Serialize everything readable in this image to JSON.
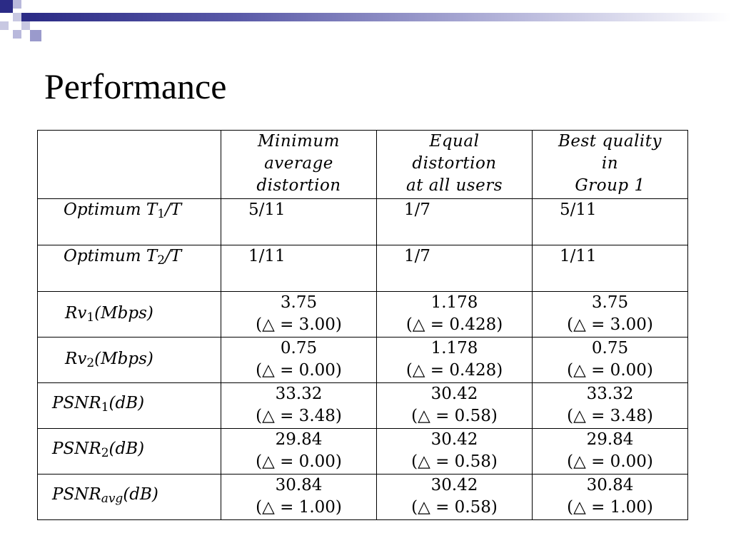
{
  "slide": {
    "title": "Performance"
  },
  "table": {
    "headers": [
      "",
      [
        "Minimum",
        "average",
        "distortion"
      ],
      [
        "Equal",
        "distortion",
        "at all users"
      ],
      [
        "Best quality",
        "in",
        "Group 1"
      ]
    ],
    "rows": [
      {
        "label": {
          "pre": "Optimum T",
          "sub": "1",
          "post": "/T"
        },
        "cells": [
          "5/11",
          "1/7",
          "5/11"
        ]
      },
      {
        "label": {
          "pre": "Optimum T",
          "sub": "2",
          "post": "/T"
        },
        "cells": [
          "1/11",
          "1/7",
          "1/11"
        ]
      },
      {
        "label": {
          "pre": "Rv",
          "sub": "1",
          "post": "(Mbps)"
        },
        "cells": [
          {
            "value": "3.75",
            "delta": "(△ = 3.00)"
          },
          {
            "value": "1.178",
            "delta": "(△ = 0.428)"
          },
          {
            "value": "3.75",
            "delta": "(△ = 3.00)"
          }
        ]
      },
      {
        "label": {
          "pre": "Rv",
          "sub": "2",
          "post": "(Mbps)"
        },
        "cells": [
          {
            "value": "0.75",
            "delta": "(△ = 0.00)"
          },
          {
            "value": "1.178",
            "delta": "(△ = 0.428)"
          },
          {
            "value": "0.75",
            "delta": "(△ = 0.00)"
          }
        ]
      },
      {
        "label": {
          "pre": "PSNR",
          "sub": "1",
          "post": "(dB)"
        },
        "cells": [
          {
            "value": "33.32",
            "delta": "(△ = 3.48)"
          },
          {
            "value": "30.42",
            "delta": "(△ = 0.58)"
          },
          {
            "value": "33.32",
            "delta": "(△ = 3.48)"
          }
        ]
      },
      {
        "label": {
          "pre": "PSNR",
          "sub": "2",
          "post": "(dB)"
        },
        "cells": [
          {
            "value": "29.84",
            "delta": "(△ = 0.00)"
          },
          {
            "value": "30.42",
            "delta": "(△ = 0.58)"
          },
          {
            "value": "29.84",
            "delta": "(△ = 0.00)"
          }
        ]
      },
      {
        "label": {
          "pre": "PSNR",
          "sub": "avg",
          "post": "(dB)"
        },
        "cells": [
          {
            "value": "30.84",
            "delta": "(△ = 1.00)"
          },
          {
            "value": "30.42",
            "delta": "(△ = 0.58)"
          },
          {
            "value": "30.84",
            "delta": "(△ = 1.00)"
          }
        ]
      }
    ]
  },
  "colors": {
    "accent_dark": "#2b2b86",
    "accent_light": "#b9b9dc"
  }
}
